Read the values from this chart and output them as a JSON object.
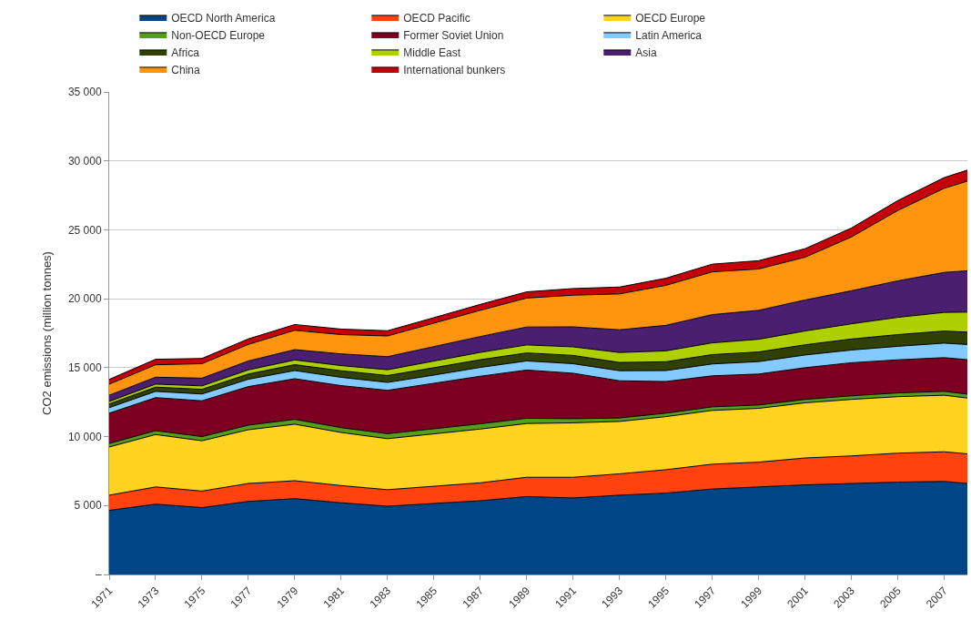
{
  "chart_data": {
    "type": "area",
    "stacked": true,
    "ylabel": "CO2 emissions (million tonnes)",
    "x": [
      1971,
      1973,
      1975,
      1977,
      1979,
      1981,
      1983,
      1985,
      1987,
      1989,
      1991,
      1993,
      1995,
      1997,
      1999,
      2001,
      2003,
      2005,
      2007,
      2008
    ],
    "xlim": [
      1971,
      2008
    ],
    "xticks": [
      1971,
      1973,
      1975,
      1977,
      1979,
      1981,
      1983,
      1985,
      1987,
      1989,
      1991,
      1993,
      1995,
      1997,
      1999,
      2001,
      2003,
      2005,
      2007
    ],
    "ylim": [
      0,
      35000
    ],
    "yticks": [
      {
        "value": 0,
        "label": "–"
      },
      {
        "value": 5000,
        "label": "5 000"
      },
      {
        "value": 10000,
        "label": "10 000"
      },
      {
        "value": 15000,
        "label": "15 000"
      },
      {
        "value": 20000,
        "label": "20 000"
      },
      {
        "value": 25000,
        "label": "25 000"
      },
      {
        "value": 30000,
        "label": "30 000"
      },
      {
        "value": 35000,
        "label": "35 000"
      }
    ],
    "grid": "y",
    "legend": "top",
    "series": [
      {
        "name": "OECD North America",
        "color": "#004586",
        "values": [
          4650,
          5100,
          4850,
          5300,
          5500,
          5200,
          4950,
          5150,
          5350,
          5650,
          5550,
          5750,
          5900,
          6200,
          6350,
          6500,
          6600,
          6700,
          6750,
          6600
        ]
      },
      {
        "name": "OECD Pacific",
        "color": "#ff420e",
        "values": [
          1100,
          1250,
          1200,
          1300,
          1300,
          1250,
          1200,
          1250,
          1300,
          1400,
          1500,
          1550,
          1700,
          1800,
          1800,
          1950,
          2000,
          2100,
          2150,
          2150
        ]
      },
      {
        "name": "OECD Europe",
        "color": "#ffd320",
        "values": [
          3500,
          3800,
          3650,
          3900,
          4100,
          3850,
          3700,
          3800,
          3900,
          3900,
          3950,
          3800,
          3850,
          3900,
          3900,
          4000,
          4100,
          4100,
          4100,
          4050
        ]
      },
      {
        "name": "Non-OECD Europe",
        "color": "#579d1c",
        "values": [
          250,
          280,
          300,
          330,
          350,
          350,
          360,
          370,
          380,
          380,
          300,
          250,
          250,
          260,
          240,
          250,
          260,
          270,
          280,
          280
        ]
      },
      {
        "name": "Former Soviet Union",
        "color": "#7e0021",
        "values": [
          2200,
          2400,
          2600,
          2800,
          2950,
          3050,
          3150,
          3300,
          3450,
          3500,
          3300,
          2700,
          2300,
          2250,
          2250,
          2300,
          2400,
          2400,
          2450,
          2500
        ]
      },
      {
        "name": "Latin America",
        "color": "#83caff",
        "values": [
          400,
          450,
          490,
          530,
          590,
          600,
          570,
          590,
          640,
          660,
          690,
          730,
          790,
          860,
          900,
          920,
          920,
          980,
          1050,
          1100
        ]
      },
      {
        "name": "Africa",
        "color": "#314004",
        "values": [
          270,
          310,
          340,
          380,
          430,
          480,
          500,
          540,
          560,
          580,
          600,
          600,
          640,
          680,
          700,
          740,
          800,
          850,
          880,
          900
        ]
      },
      {
        "name": "Middle East",
        "color": "#aecf00",
        "values": [
          180,
          220,
          250,
          300,
          340,
          370,
          420,
          480,
          530,
          580,
          620,
          720,
          790,
          850,
          920,
          1000,
          1100,
          1250,
          1350,
          1450
        ]
      },
      {
        "name": "Asia",
        "color": "#4b1f6f",
        "values": [
          450,
          500,
          560,
          650,
          750,
          850,
          950,
          1050,
          1150,
          1300,
          1450,
          1650,
          1850,
          2050,
          2100,
          2250,
          2400,
          2650,
          2900,
          3000
        ]
      },
      {
        "name": "China",
        "color": "#ff950e",
        "values": [
          800,
          900,
          1050,
          1200,
          1400,
          1400,
          1500,
          1700,
          1900,
          2100,
          2300,
          2600,
          2900,
          3100,
          3000,
          3100,
          3900,
          5100,
          6100,
          6500
        ]
      },
      {
        "name": "International bunkers",
        "color": "#c5000b",
        "values": [
          350,
          400,
          380,
          400,
          420,
          400,
          380,
          400,
          430,
          450,
          480,
          500,
          520,
          560,
          600,
          620,
          650,
          720,
          780,
          800
        ]
      }
    ]
  }
}
